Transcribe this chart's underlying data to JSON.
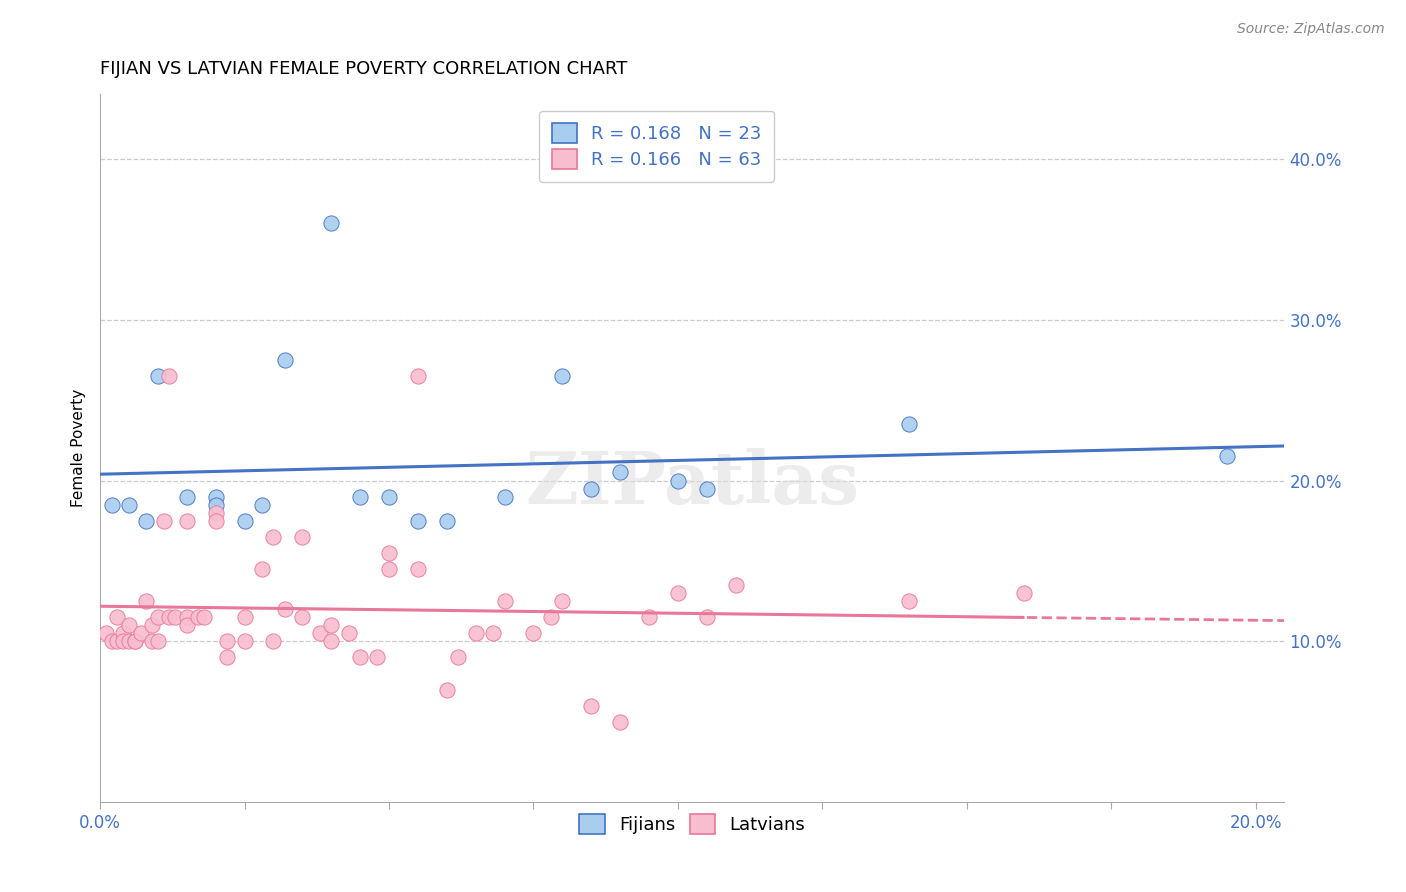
{
  "title": "FIJIAN VS LATVIAN FEMALE POVERTY CORRELATION CHART",
  "source": "Source: ZipAtlas.com",
  "ylabel": "Female Poverty",
  "ytick_labels": [
    "10.0%",
    "20.0%",
    "30.0%",
    "40.0%"
  ],
  "ytick_values": [
    0.1,
    0.2,
    0.3,
    0.4
  ],
  "xlim": [
    0.0,
    0.205
  ],
  "ylim": [
    0.0,
    0.44
  ],
  "fijian_color": "#A8CDEF",
  "latvian_color": "#F9BDD0",
  "fijian_line_color": "#4472C4",
  "latvian_line_color": "#E87899",
  "legend_text_color": "#4472C4",
  "fijian_R": "0.168",
  "fijian_N": "23",
  "latvian_R": "0.166",
  "latvian_N": "63",
  "fijian_scatter_x": [
    0.002,
    0.005,
    0.008,
    0.01,
    0.015,
    0.02,
    0.02,
    0.025,
    0.028,
    0.032,
    0.04,
    0.045,
    0.05,
    0.055,
    0.06,
    0.07,
    0.08,
    0.085,
    0.09,
    0.1,
    0.105,
    0.14,
    0.195
  ],
  "fijian_scatter_y": [
    0.185,
    0.185,
    0.175,
    0.265,
    0.19,
    0.19,
    0.185,
    0.175,
    0.185,
    0.275,
    0.36,
    0.19,
    0.19,
    0.175,
    0.175,
    0.19,
    0.265,
    0.195,
    0.205,
    0.2,
    0.195,
    0.235,
    0.215
  ],
  "latvian_scatter_x": [
    0.001,
    0.002,
    0.003,
    0.003,
    0.004,
    0.004,
    0.005,
    0.005,
    0.006,
    0.006,
    0.007,
    0.008,
    0.009,
    0.009,
    0.01,
    0.01,
    0.011,
    0.012,
    0.012,
    0.013,
    0.015,
    0.015,
    0.015,
    0.017,
    0.018,
    0.02,
    0.02,
    0.022,
    0.022,
    0.025,
    0.025,
    0.028,
    0.03,
    0.03,
    0.032,
    0.035,
    0.035,
    0.038,
    0.04,
    0.04,
    0.043,
    0.045,
    0.048,
    0.05,
    0.05,
    0.055,
    0.055,
    0.06,
    0.062,
    0.065,
    0.068,
    0.07,
    0.075,
    0.078,
    0.08,
    0.085,
    0.09,
    0.095,
    0.1,
    0.105,
    0.11,
    0.14,
    0.16
  ],
  "latvian_scatter_y": [
    0.105,
    0.1,
    0.115,
    0.1,
    0.105,
    0.1,
    0.1,
    0.11,
    0.1,
    0.1,
    0.105,
    0.125,
    0.11,
    0.1,
    0.1,
    0.115,
    0.175,
    0.115,
    0.265,
    0.115,
    0.115,
    0.11,
    0.175,
    0.115,
    0.115,
    0.18,
    0.175,
    0.09,
    0.1,
    0.1,
    0.115,
    0.145,
    0.1,
    0.165,
    0.12,
    0.115,
    0.165,
    0.105,
    0.1,
    0.11,
    0.105,
    0.09,
    0.09,
    0.145,
    0.155,
    0.265,
    0.145,
    0.07,
    0.09,
    0.105,
    0.105,
    0.125,
    0.105,
    0.115,
    0.125,
    0.06,
    0.05,
    0.115,
    0.13,
    0.115,
    0.135,
    0.125,
    0.13
  ],
  "background_color": "#FFFFFF",
  "grid_color": "#CCCCCC",
  "title_fontsize": 13,
  "axis_label_fontsize": 11,
  "tick_fontsize": 12,
  "legend_fontsize": 13,
  "marker_size": 120,
  "watermark": "ZIPatlas"
}
